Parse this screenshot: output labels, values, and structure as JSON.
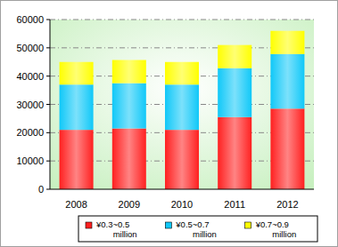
{
  "chart_data": {
    "type": "bar",
    "stacked": true,
    "grid": true,
    "legend": "bottom",
    "categories": [
      "2008",
      "2009",
      "2010",
      "2011",
      "2012"
    ],
    "series": [
      {
        "name": "¥0.3~0.5 million",
        "color": "#ff2020",
        "values": [
          21000,
          21500,
          21000,
          25500,
          28500
        ]
      },
      {
        "name": "¥0.5~0.7 million",
        "color": "#10c8f8",
        "values": [
          16000,
          16000,
          16000,
          17300,
          19300
        ]
      },
      {
        "name": "¥0.7~0.9 million",
        "color": "#ffff00",
        "values": [
          8000,
          8200,
          8000,
          8200,
          8200
        ]
      }
    ],
    "ylim": [
      0,
      60000
    ],
    "yticks": [
      0,
      10000,
      20000,
      30000,
      40000,
      50000,
      60000
    ]
  }
}
